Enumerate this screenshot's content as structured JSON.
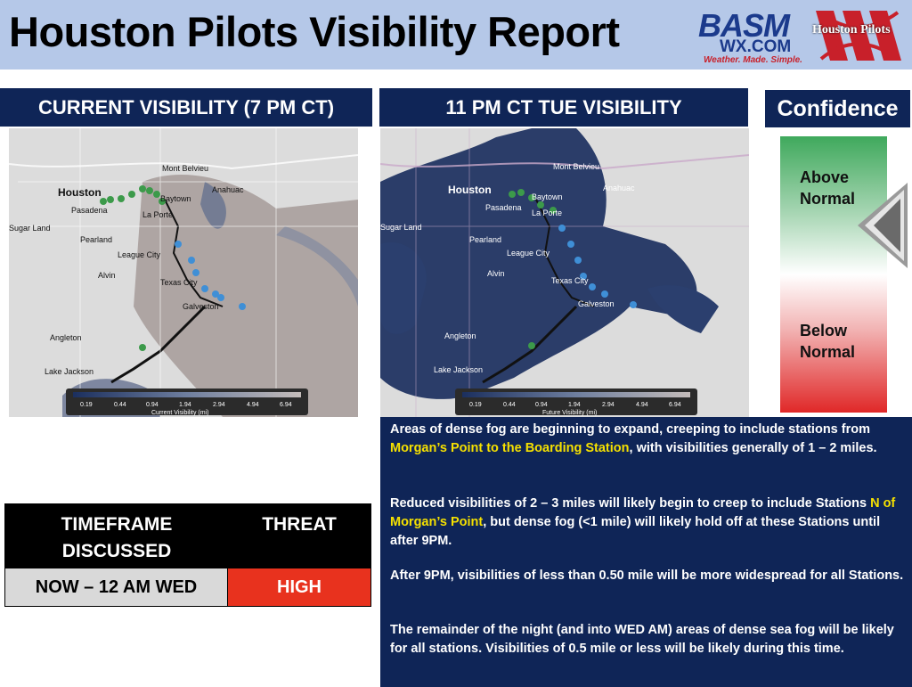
{
  "header": {
    "title": "Houston Pilots Visibility Report",
    "basm_logo": {
      "text": "BASM",
      "sub": "WX.COM",
      "tagline": "Weather. Made. Simple."
    },
    "houston_pilots_logo": {
      "text": "Houston Pilots"
    }
  },
  "panels": {
    "current": {
      "title": "CURRENT VISIBILITY (7 PM CT)",
      "legend_caption": "Current Visibility (mi)"
    },
    "future": {
      "title": "11 PM CT TUE VISIBILITY",
      "legend_caption": "Future Visibility (mi)"
    }
  },
  "legend_ticks": [
    "0.19",
    "0.44",
    "0.94",
    "1.94",
    "2.94",
    "4.94",
    "6.94"
  ],
  "map_labels": [
    "Mont Belvieu",
    "Houston",
    "Baytown",
    "Anahuac",
    "Pasadena",
    "La Porte",
    "Sugar Land",
    "Pearland",
    "League City",
    "Alvin",
    "Texas City",
    "Galveston",
    "Angleton",
    "Lake Jackson"
  ],
  "confidence": {
    "title": "Confidence",
    "above": [
      "Above",
      "Normal"
    ],
    "below": [
      "Below",
      "Normal"
    ],
    "indicator": "above-normal"
  },
  "threat_table": {
    "col1": [
      "TIMEFRAME",
      "DISCUSSED"
    ],
    "col2": "THREAT",
    "timeframe": "NOW – 12 AM WED",
    "threat": "HIGH",
    "threat_color": "#e8321e"
  },
  "discussion": {
    "p1_a": "Areas of dense fog are beginning to expand, creeping to include stations from ",
    "p1_hl": "Morgan’s Point to the Boarding Station",
    "p1_b": ", with visibilities generally of 1 – 2 miles.",
    "p2_a": "Reduced visibilities of 2 – 3 miles will likely begin to creep to include Stations ",
    "p2_hl": "N of Morgan’s Point",
    "p2_b": ", but dense fog (<1 mile) will likely hold off at these Stations until after 9PM.",
    "p3": "After 9PM, visibilities of less than 0.50 mile will be more widespread for all Stations.",
    "p4": "The remainder of the night (and into WED AM) areas of dense sea fog will be likely for all stations.  Visibilities of 0.5 mile or less will be likely during this time."
  },
  "colors": {
    "navy": "#0f2557",
    "title_bar": "#b5c8e8",
    "highlight": "#f5e000",
    "station_green": "#3c9a4a",
    "station_blue": "#3f8fd6"
  }
}
